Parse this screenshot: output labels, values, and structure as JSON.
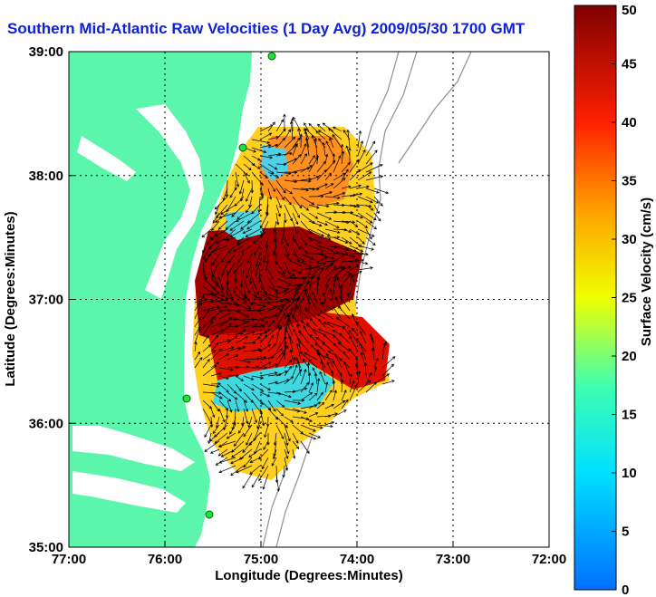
{
  "chart_data": {
    "type": "heatmap",
    "title": "Southern Mid-Atlantic Raw Velocities (1 Day Avg) 2009/05/30 1700 GMT",
    "xlabel": "Longitude (Degrees:Minutes)",
    "ylabel": "Latitude (Degrees:Minutes)",
    "colorbar_label": "Surface Velocity (cm/s)",
    "x_ticks": [
      "77:00",
      "76:00",
      "75:00",
      "74:00",
      "73:00",
      "72:00"
    ],
    "y_ticks": [
      "39:00",
      "38:00",
      "37:00",
      "36:00",
      "35:00"
    ],
    "x_range": [
      -77,
      -72
    ],
    "y_range": [
      35,
      39
    ],
    "colorbar_ticks": [
      0,
      5,
      10,
      15,
      20,
      25,
      30,
      35,
      40,
      45,
      50
    ],
    "colorbar_range": [
      0,
      50
    ],
    "grid": true,
    "colors": {
      "land": "#5cf5ac",
      "title": "#1020d8",
      "vectors": "#000000",
      "bathymetry": "#909090"
    }
  }
}
